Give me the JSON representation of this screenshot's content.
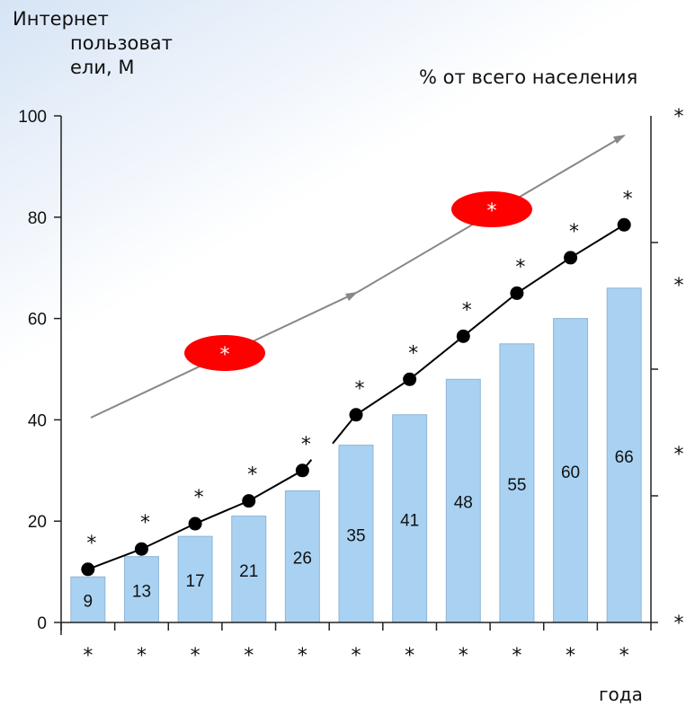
{
  "chart_data": {
    "type": "bar",
    "ylabel": "Интернет пользователи, М",
    "ylabel_lines": [
      "Интернет",
      "пользоват",
      "ели, М"
    ],
    "y2label": "% от всего населения",
    "xlabel": "года",
    "ylim": [
      0,
      100
    ],
    "yticks": [
      0,
      20,
      40,
      60,
      80,
      100
    ],
    "categories": [
      "*",
      "*",
      "*",
      "*",
      "*",
      "*",
      "*",
      "*",
      "*",
      "*",
      "*"
    ],
    "series": [
      {
        "type": "bar",
        "color": "#a9d2f2",
        "values": [
          9,
          13,
          17,
          21,
          26,
          35,
          41,
          48,
          55,
          60,
          66
        ],
        "labels": [
          "9",
          "13",
          "17",
          "21",
          "26",
          "35",
          "41",
          "48",
          "55",
          "60",
          "66"
        ]
      },
      {
        "type": "line",
        "axis": "right",
        "color": "#000000",
        "values": [
          10.5,
          14.5,
          19.5,
          24,
          30,
          41,
          48,
          56.5,
          65,
          72,
          78.5
        ],
        "point_labels": [
          "*",
          "*",
          "*",
          "*",
          "*",
          "*",
          "*",
          "*",
          "*",
          "*",
          "*"
        ]
      }
    ],
    "y2ticks": [
      "*",
      "*",
      "*",
      "*"
    ],
    "trend_badges": [
      "*",
      "*"
    ],
    "trend_color": "#888888",
    "badge_color": "#ff0000"
  }
}
